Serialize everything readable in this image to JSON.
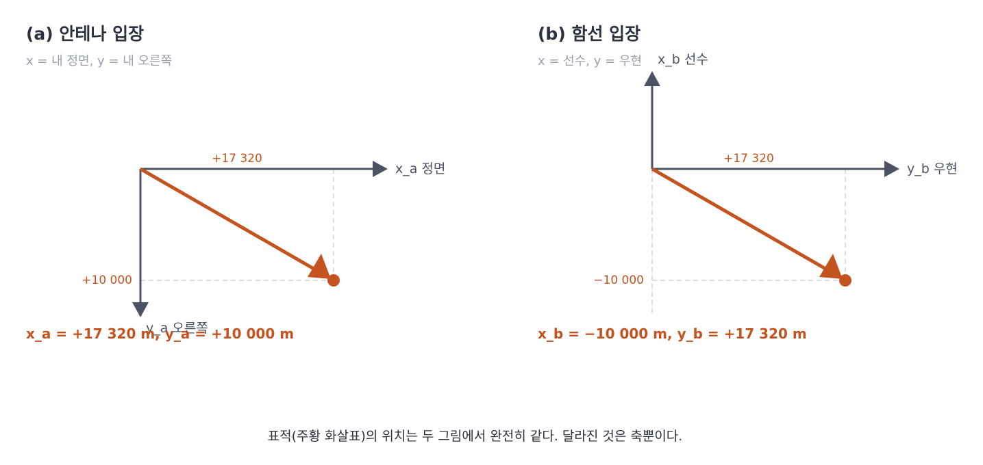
{
  "colors": {
    "axis": "#4a5263",
    "vector": "#c4531f",
    "guide": "#dcdce6",
    "subtitle": "#9aa1ae",
    "text": "#2b313d"
  },
  "panel_a": {
    "title": "(a) 안테나 입장",
    "subtitle": "x = 내 정면,  y = 내 오른쪽",
    "axis_forward_label": "x_a  정면",
    "axis_right_label": "y_a  오른쪽",
    "forward_value_label": "+17 320",
    "right_value_label": "+10 000",
    "result": "x_a = +17 320 m,  y_a = +10 000 m",
    "target": {
      "x": 17320,
      "y": 10000
    }
  },
  "panel_b": {
    "title": "(b) 함선 입장",
    "subtitle": "x = 선수,  y = 우현",
    "axis_bow_label": "x_b  선수",
    "axis_starboard_label": "y_b  우현",
    "starboard_value_label": "+17 320",
    "bow_value_label": "−10 000",
    "result": "x_b = −10 000 m,   y_b = +17 320 m",
    "target": {
      "x": -10000,
      "y": 17320
    }
  },
  "caption": "표적(주황 화살표)의 위치는 두 그림에서 완전히 같다. 달라진 것은 축뿐이다."
}
